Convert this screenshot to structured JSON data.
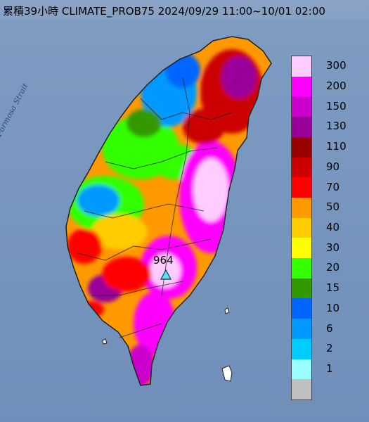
{
  "map": {
    "title": "累積39小時 CLIMATE_PROB75 2024/09/29 11:00~10/01 02:00",
    "water_label": "Formosa Strait",
    "peak_value": "964",
    "peak_marker_icon": "triangle-marker-icon",
    "colors": {
      "sea": "#7d9ac0",
      "land_outline": "#222222"
    }
  },
  "legend": {
    "unit_note": "",
    "items": [
      {
        "label": "300",
        "color": "#ffccff"
      },
      {
        "label": "200",
        "color": "#ff00ff"
      },
      {
        "label": "150",
        "color": "#cc00cc"
      },
      {
        "label": "130",
        "color": "#990099"
      },
      {
        "label": "110",
        "color": "#990000"
      },
      {
        "label": "90",
        "color": "#cc0000"
      },
      {
        "label": "70",
        "color": "#ff0000"
      },
      {
        "label": "50",
        "color": "#ff9900"
      },
      {
        "label": "40",
        "color": "#ffcc00"
      },
      {
        "label": "30",
        "color": "#ffff00"
      },
      {
        "label": "20",
        "color": "#33ff00"
      },
      {
        "label": "15",
        "color": "#339900"
      },
      {
        "label": "10",
        "color": "#0066ff"
      },
      {
        "label": "6",
        "color": "#0099ff"
      },
      {
        "label": "2",
        "color": "#00ccff"
      },
      {
        "label": "1",
        "color": "#99ffff"
      },
      {
        "label": "",
        "color": "#c0c0c0"
      }
    ]
  }
}
